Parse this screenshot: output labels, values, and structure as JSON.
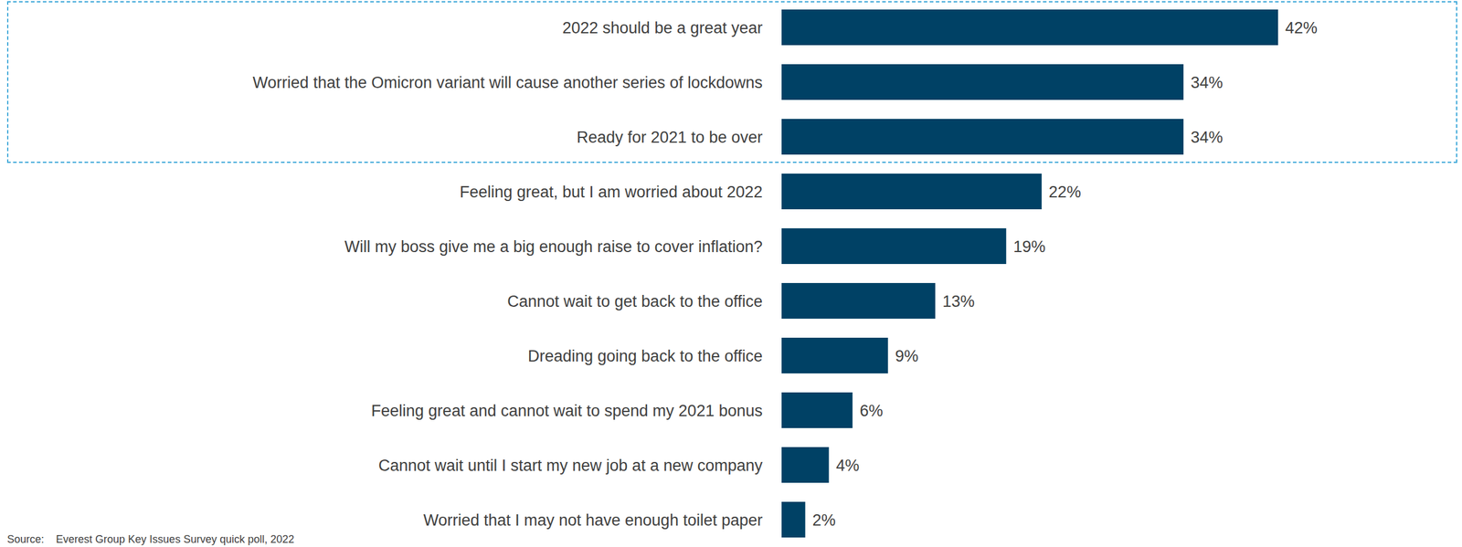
{
  "chart_data": {
    "type": "bar",
    "orientation": "horizontal",
    "categories": [
      "2022 should be a great year",
      "Worried that the Omicron variant will cause another series of lockdowns",
      "Ready for 2021 to be over",
      "Feeling great, but I am worried about 2022",
      "Will my boss give me a big enough raise to cover inflation?",
      "Cannot wait to get back to the office",
      "Dreading going back to the office",
      "Feeling great and cannot wait to spend my 2021 bonus",
      "Cannot wait until I start my new job at a new company",
      "Worried that I may not have enough toilet paper"
    ],
    "values": [
      42,
      34,
      34,
      22,
      19,
      13,
      9,
      6,
      4,
      2
    ],
    "value_labels": [
      "42%",
      "34%",
      "34%",
      "22%",
      "19%",
      "13%",
      "9%",
      "6%",
      "4%",
      "2%"
    ],
    "color": "#004165",
    "data_labels": true,
    "tick_labels": "y",
    "grid": false
  },
  "source": "Source:    Everest Group Key Issues Survey quick poll, 2022"
}
